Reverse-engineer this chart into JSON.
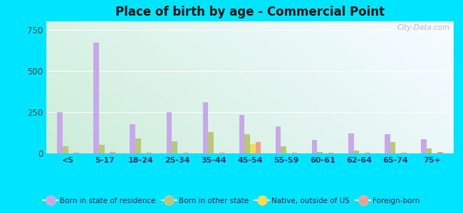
{
  "title": "Place of birth by age - Commercial Point",
  "categories": [
    "<5",
    "5-17",
    "18-24",
    "25-34",
    "35-44",
    "45-54",
    "55-59",
    "60-61",
    "62-64",
    "65-74",
    "75+"
  ],
  "series": {
    "Born in state of residence": [
      250,
      670,
      175,
      248,
      308,
      232,
      163,
      80,
      120,
      118,
      88
    ],
    "Born in other state": [
      42,
      52,
      90,
      72,
      130,
      115,
      42,
      10,
      18,
      68,
      28
    ],
    "Native, outside of US": [
      0,
      0,
      0,
      0,
      0,
      55,
      0,
      0,
      0,
      0,
      0
    ],
    "Foreign-born": [
      5,
      8,
      5,
      5,
      5,
      68,
      5,
      5,
      5,
      5,
      8
    ]
  },
  "colors": {
    "Born in state of residence": "#c8a8e8",
    "Born in other state": "#b8c878",
    "Native, outside of US": "#f0e050",
    "Foreign-born": "#f0a090"
  },
  "ylim": [
    0,
    800
  ],
  "yticks": [
    0,
    250,
    500,
    750
  ],
  "background_outer": "#00e5ff",
  "grid_color": "#ffffff",
  "watermark": "City-Data.com"
}
